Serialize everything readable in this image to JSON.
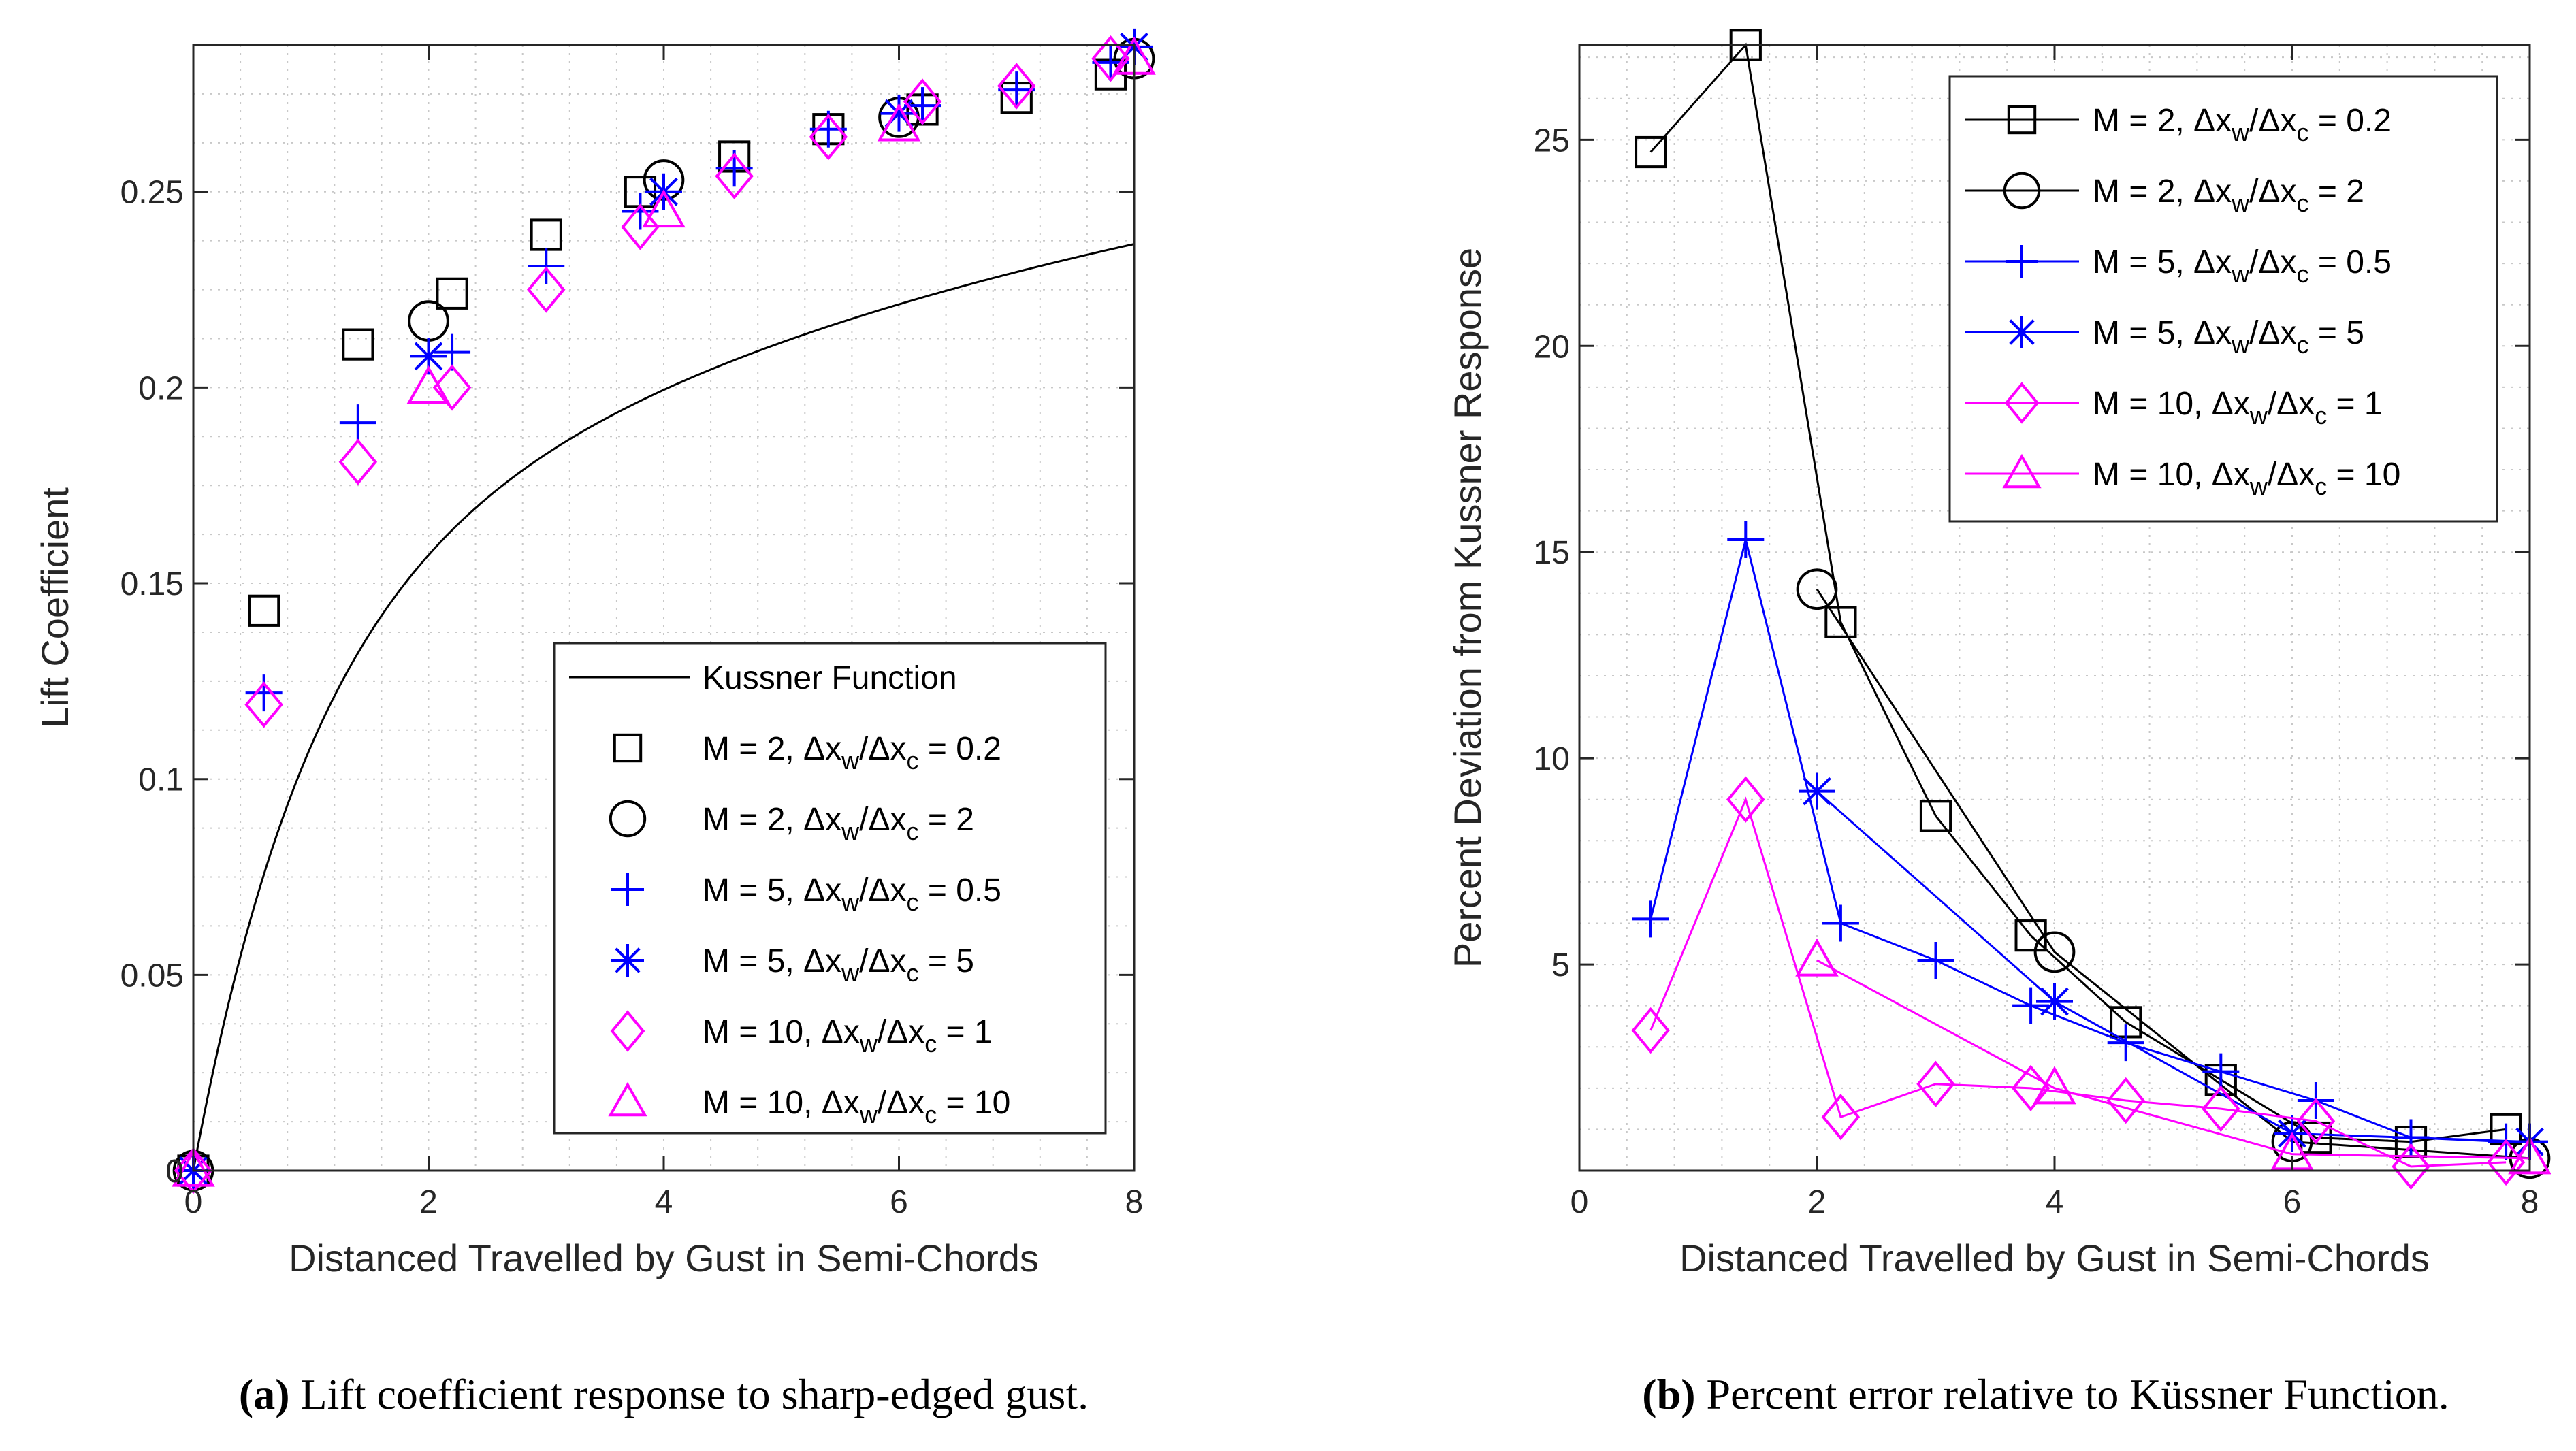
{
  "chart_data": [
    {
      "type": "scatter",
      "xlabel": "Distanced Travelled by Gust in Semi-Chords",
      "ylabel": "Lift Coefficient",
      "xlim": [
        0,
        8
      ],
      "ylim": [
        0,
        0.2875
      ],
      "xticks": [
        0,
        2,
        4,
        6,
        8
      ],
      "xtick_labels": [
        "0",
        "2",
        "4",
        "6",
        "8"
      ],
      "yticks": [
        0,
        0.05,
        0.1,
        0.15,
        0.2,
        0.25
      ],
      "ytick_labels": [
        "0",
        "0.05",
        "0.1",
        "0.15",
        "0.2",
        "0.25"
      ],
      "grid": "minor dotted",
      "legend_loc": "lower-right",
      "caption_label": "(a)",
      "caption_text": "Lift coefficient response to sharp-edged gust.",
      "reference_curve": {
        "name": "Kussner Function",
        "color": "#000000",
        "formula": "0.2875*(1 - 0.5*exp(-0.13x) - 0.5*exp(-x))"
      },
      "series": [
        {
          "name": "M = 2, Δx_w/Δx_c = 0.2",
          "legend_prefix": "M = 2, ",
          "ratio": "0.2",
          "marker": "square",
          "color": "#000000",
          "x": [
            0,
            0.6,
            1.4,
            2.2,
            3.0,
            3.8,
            4.6,
            5.4,
            6.2,
            7.0,
            7.8
          ],
          "y": [
            0,
            0.143,
            0.211,
            0.224,
            0.239,
            0.25,
            0.259,
            0.266,
            0.271,
            0.274,
            0.28
          ]
        },
        {
          "name": "M = 2, Δx_w/Δx_c = 2",
          "legend_prefix": "M = 2, ",
          "ratio": "2",
          "marker": "circle",
          "color": "#000000",
          "x": [
            0,
            2,
            4,
            6,
            8
          ],
          "y": [
            0,
            0.217,
            0.253,
            0.269,
            0.284
          ]
        },
        {
          "name": "M = 5, Δx_w/Δx_c = 0.5",
          "legend_prefix": "M = 5, ",
          "ratio": "0.5",
          "marker": "plus",
          "color": "#0000ff",
          "x": [
            0,
            0.6,
            1.4,
            2.2,
            3.0,
            3.8,
            4.6,
            5.4,
            6.2,
            7.0,
            7.8
          ],
          "y": [
            0,
            0.122,
            0.191,
            0.209,
            0.231,
            0.245,
            0.256,
            0.266,
            0.272,
            0.276,
            0.283
          ]
        },
        {
          "name": "M = 5, Δx_w/Δx_c = 5",
          "legend_prefix": "M = 5, ",
          "ratio": "5",
          "marker": "asterisk",
          "color": "#0000ff",
          "x": [
            0,
            2,
            4,
            6,
            8
          ],
          "y": [
            0,
            0.208,
            0.25,
            0.27,
            0.287
          ]
        },
        {
          "name": "M = 10, Δx_w/Δx_c = 1",
          "legend_prefix": "M = 10, ",
          "ratio": "1",
          "marker": "diamond",
          "color": "#ff00ff",
          "x": [
            0,
            0.6,
            1.4,
            2.2,
            3.0,
            3.8,
            4.6,
            5.4,
            6.2,
            7.0,
            7.8
          ],
          "y": [
            0,
            0.119,
            0.181,
            0.2,
            0.225,
            0.241,
            0.254,
            0.264,
            0.273,
            0.277,
            0.284
          ]
        },
        {
          "name": "M = 10, Δx_w/Δx_c = 10",
          "legend_prefix": "M = 10, ",
          "ratio": "10",
          "marker": "triangle",
          "color": "#ff00ff",
          "x": [
            0,
            2,
            4,
            6,
            8
          ],
          "y": [
            0,
            0.2,
            0.245,
            0.267,
            0.284
          ]
        }
      ]
    },
    {
      "type": "line",
      "xlabel": "Distanced Travelled by Gust in Semi-Chords",
      "ylabel": "Percent Deviation from Kussner Response",
      "xlim": [
        0,
        8
      ],
      "ylim": [
        0,
        27.3
      ],
      "xticks": [
        0,
        2,
        4,
        6,
        8
      ],
      "xtick_labels": [
        "0",
        "2",
        "4",
        "6",
        "8"
      ],
      "yticks": [
        5,
        10,
        15,
        20,
        25
      ],
      "ytick_labels": [
        "5",
        "10",
        "15",
        "20",
        "25"
      ],
      "grid": "minor dotted",
      "legend_loc": "top-right",
      "caption_label": "(b)",
      "caption_text": "Percent error relative to Küssner Function.",
      "series": [
        {
          "name": "M = 2, Δx_w/Δx_c = 0.2",
          "legend_prefix": "M = 2, ",
          "ratio": "0.2",
          "marker": "square",
          "color": "#000000",
          "x": [
            0.6,
            1.4,
            2.2,
            3.0,
            3.8,
            4.6,
            5.4,
            6.2,
            7.0,
            7.8
          ],
          "y": [
            24.7,
            27.3,
            13.3,
            8.6,
            5.7,
            3.6,
            2.2,
            0.8,
            0.7,
            1.0
          ]
        },
        {
          "name": "M = 2, Δx_w/Δx_c = 2",
          "legend_prefix": "M = 2, ",
          "ratio": "2",
          "marker": "circle",
          "color": "#000000",
          "x": [
            2,
            4,
            6,
            8
          ],
          "y": [
            14.1,
            5.3,
            0.7,
            0.3
          ]
        },
        {
          "name": "M = 5, Δx_w/Δx_c = 0.5",
          "legend_prefix": "M = 5, ",
          "ratio": "0.5",
          "marker": "plus",
          "color": "#0000ff",
          "x": [
            0.6,
            1.4,
            2.2,
            3.0,
            3.8,
            4.6,
            5.4,
            6.2,
            7.0,
            7.8
          ],
          "y": [
            6.1,
            15.3,
            6.0,
            5.1,
            4.0,
            3.1,
            2.4,
            1.7,
            0.8,
            0.7
          ]
        },
        {
          "name": "M = 5, Δx_w/Δx_c = 5",
          "legend_prefix": "M = 5, ",
          "ratio": "5",
          "marker": "asterisk",
          "color": "#0000ff",
          "x": [
            2,
            4,
            6,
            8
          ],
          "y": [
            9.2,
            4.1,
            0.9,
            0.7
          ]
        },
        {
          "name": "M = 10, Δx_w/Δx_c = 1",
          "legend_prefix": "M = 10, ",
          "ratio": "1",
          "marker": "diamond",
          "color": "#ff00ff",
          "x": [
            0.6,
            1.4,
            2.2,
            3.0,
            3.8,
            4.6,
            5.4,
            6.2,
            7.0,
            7.8
          ],
          "y": [
            3.4,
            9.0,
            1.3,
            2.1,
            2.0,
            1.7,
            1.5,
            1.2,
            0.1,
            0.2
          ]
        },
        {
          "name": "M = 10, Δx_w/Δx_c = 10",
          "legend_prefix": "M = 10, ",
          "ratio": "10",
          "marker": "triangle",
          "color": "#ff00ff",
          "x": [
            2,
            4,
            6,
            8
          ],
          "y": [
            5.1,
            2.0,
            0.4,
            0.3
          ]
        }
      ]
    }
  ]
}
